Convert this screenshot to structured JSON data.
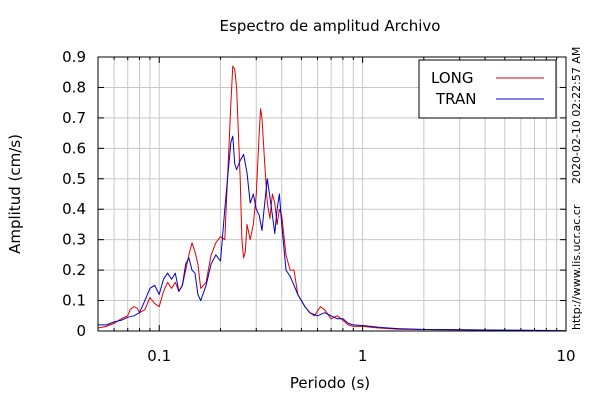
{
  "chart_data": {
    "type": "line",
    "title": "Espectro de amplitud Archivo",
    "xlabel": "Periodo (s)",
    "ylabel": "Amplitud (cm/s)",
    "x_scale": "log",
    "xlim": [
      0.05,
      10
    ],
    "ylim": [
      0,
      0.9
    ],
    "grid": true,
    "legend_position": "top-right",
    "x_ticks": [
      {
        "value": 0.1,
        "label": "0.1"
      },
      {
        "value": 1,
        "label": "1"
      },
      {
        "value": 10,
        "label": "10"
      }
    ],
    "y_ticks": [
      {
        "value": 0,
        "label": "0"
      },
      {
        "value": 0.1,
        "label": "0.1"
      },
      {
        "value": 0.2,
        "label": "0.2"
      },
      {
        "value": 0.3,
        "label": "0.3"
      },
      {
        "value": 0.4,
        "label": "0.4"
      },
      {
        "value": 0.5,
        "label": "0.5"
      },
      {
        "value": 0.6,
        "label": "0.6"
      },
      {
        "value": 0.7,
        "label": "0.7"
      },
      {
        "value": 0.8,
        "label": "0.8"
      },
      {
        "value": 0.9,
        "label": "0.9"
      }
    ],
    "series": [
      {
        "name": "LONG",
        "color": "#e00000",
        "points": [
          [
            0.05,
            0.01
          ],
          [
            0.055,
            0.015
          ],
          [
            0.06,
            0.025
          ],
          [
            0.065,
            0.04
          ],
          [
            0.07,
            0.05
          ],
          [
            0.072,
            0.07
          ],
          [
            0.075,
            0.08
          ],
          [
            0.078,
            0.075
          ],
          [
            0.08,
            0.06
          ],
          [
            0.085,
            0.07
          ],
          [
            0.09,
            0.11
          ],
          [
            0.095,
            0.09
          ],
          [
            0.1,
            0.08
          ],
          [
            0.105,
            0.13
          ],
          [
            0.11,
            0.16
          ],
          [
            0.115,
            0.14
          ],
          [
            0.12,
            0.16
          ],
          [
            0.125,
            0.13
          ],
          [
            0.13,
            0.15
          ],
          [
            0.135,
            0.2
          ],
          [
            0.14,
            0.25
          ],
          [
            0.145,
            0.29
          ],
          [
            0.15,
            0.26
          ],
          [
            0.155,
            0.22
          ],
          [
            0.16,
            0.14
          ],
          [
            0.165,
            0.15
          ],
          [
            0.17,
            0.16
          ],
          [
            0.18,
            0.25
          ],
          [
            0.19,
            0.29
          ],
          [
            0.2,
            0.31
          ],
          [
            0.21,
            0.3
          ],
          [
            0.215,
            0.45
          ],
          [
            0.22,
            0.6
          ],
          [
            0.225,
            0.75
          ],
          [
            0.23,
            0.87
          ],
          [
            0.235,
            0.86
          ],
          [
            0.24,
            0.8
          ],
          [
            0.245,
            0.65
          ],
          [
            0.25,
            0.5
          ],
          [
            0.255,
            0.3
          ],
          [
            0.26,
            0.24
          ],
          [
            0.265,
            0.26
          ],
          [
            0.27,
            0.35
          ],
          [
            0.28,
            0.3
          ],
          [
            0.29,
            0.35
          ],
          [
            0.3,
            0.45
          ],
          [
            0.31,
            0.65
          ],
          [
            0.315,
            0.73
          ],
          [
            0.32,
            0.7
          ],
          [
            0.33,
            0.55
          ],
          [
            0.34,
            0.42
          ],
          [
            0.35,
            0.37
          ],
          [
            0.36,
            0.45
          ],
          [
            0.37,
            0.42
          ],
          [
            0.38,
            0.35
          ],
          [
            0.39,
            0.4
          ],
          [
            0.4,
            0.38
          ],
          [
            0.42,
            0.25
          ],
          [
            0.44,
            0.2
          ],
          [
            0.46,
            0.2
          ],
          [
            0.48,
            0.12
          ],
          [
            0.5,
            0.1
          ],
          [
            0.52,
            0.08
          ],
          [
            0.55,
            0.06
          ],
          [
            0.58,
            0.05
          ],
          [
            0.62,
            0.08
          ],
          [
            0.65,
            0.07
          ],
          [
            0.7,
            0.04
          ],
          [
            0.75,
            0.05
          ],
          [
            0.8,
            0.035
          ],
          [
            0.85,
            0.02
          ],
          [
            0.9,
            0.015
          ],
          [
            1.0,
            0.015
          ],
          [
            1.2,
            0.01
          ],
          [
            1.5,
            0.006
          ],
          [
            2,
            0.005
          ],
          [
            3,
            0.004
          ],
          [
            5,
            0.002
          ],
          [
            7,
            0.002
          ],
          [
            10,
            0.001
          ]
        ]
      },
      {
        "name": "TRAN",
        "color": "#0000cc",
        "points": [
          [
            0.05,
            0.02
          ],
          [
            0.055,
            0.02
          ],
          [
            0.06,
            0.03
          ],
          [
            0.065,
            0.035
          ],
          [
            0.07,
            0.045
          ],
          [
            0.075,
            0.05
          ],
          [
            0.08,
            0.06
          ],
          [
            0.085,
            0.1
          ],
          [
            0.09,
            0.14
          ],
          [
            0.095,
            0.15
          ],
          [
            0.1,
            0.12
          ],
          [
            0.105,
            0.17
          ],
          [
            0.11,
            0.19
          ],
          [
            0.115,
            0.17
          ],
          [
            0.12,
            0.19
          ],
          [
            0.125,
            0.13
          ],
          [
            0.13,
            0.15
          ],
          [
            0.135,
            0.22
          ],
          [
            0.14,
            0.24
          ],
          [
            0.145,
            0.2
          ],
          [
            0.15,
            0.19
          ],
          [
            0.155,
            0.12
          ],
          [
            0.16,
            0.1
          ],
          [
            0.17,
            0.15
          ],
          [
            0.18,
            0.22
          ],
          [
            0.19,
            0.25
          ],
          [
            0.2,
            0.23
          ],
          [
            0.21,
            0.4
          ],
          [
            0.22,
            0.55
          ],
          [
            0.225,
            0.62
          ],
          [
            0.23,
            0.64
          ],
          [
            0.235,
            0.55
          ],
          [
            0.24,
            0.53
          ],
          [
            0.25,
            0.56
          ],
          [
            0.26,
            0.58
          ],
          [
            0.27,
            0.52
          ],
          [
            0.28,
            0.42
          ],
          [
            0.29,
            0.45
          ],
          [
            0.3,
            0.4
          ],
          [
            0.31,
            0.38
          ],
          [
            0.32,
            0.33
          ],
          [
            0.33,
            0.42
          ],
          [
            0.34,
            0.5
          ],
          [
            0.35,
            0.44
          ],
          [
            0.36,
            0.38
          ],
          [
            0.37,
            0.32
          ],
          [
            0.38,
            0.4
          ],
          [
            0.39,
            0.45
          ],
          [
            0.4,
            0.35
          ],
          [
            0.42,
            0.2
          ],
          [
            0.44,
            0.18
          ],
          [
            0.46,
            0.15
          ],
          [
            0.48,
            0.12
          ],
          [
            0.5,
            0.1
          ],
          [
            0.52,
            0.08
          ],
          [
            0.55,
            0.06
          ],
          [
            0.6,
            0.05
          ],
          [
            0.65,
            0.06
          ],
          [
            0.7,
            0.05
          ],
          [
            0.75,
            0.04
          ],
          [
            0.8,
            0.04
          ],
          [
            0.85,
            0.025
          ],
          [
            0.9,
            0.02
          ],
          [
            1.0,
            0.018
          ],
          [
            1.2,
            0.012
          ],
          [
            1.5,
            0.008
          ],
          [
            2,
            0.005
          ],
          [
            3,
            0.004
          ],
          [
            5,
            0.003
          ],
          [
            7,
            0.002
          ],
          [
            10,
            0.001
          ]
        ]
      }
    ]
  },
  "side_text": {
    "timestamp": "2020-02-10 02:22:57 AM",
    "url": "http://www.lis.ucr.ac.cr"
  }
}
